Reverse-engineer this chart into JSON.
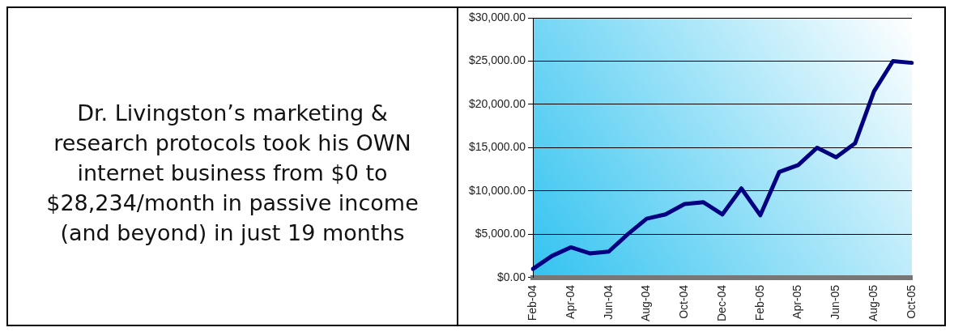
{
  "chart_data": [
    {
      "type": "other",
      "title": "Dr. Livingston’s marketing & research protocols took his OWN internet business from $0 to $28,234/month in passive income (and beyond) in just 19 months"
    },
    {
      "type": "line",
      "categories": [
        "Feb-04",
        null,
        "Apr-04",
        null,
        "Jun-04",
        null,
        "Aug-04",
        null,
        "Oct-04",
        null,
        "Dec-04",
        null,
        "Feb-05",
        null,
        "Apr-05",
        null,
        "Jun-05",
        null,
        "Aug-05",
        null,
        "Oct-05"
      ],
      "series": [
        {
          "color": "#000080",
          "values": [
            1000,
            2500,
            3500,
            2800,
            3000,
            5000,
            6800,
            7300,
            8500,
            8700,
            7300,
            10300,
            7200,
            12200,
            13000,
            15000,
            13900,
            15500,
            21500,
            25000,
            24800
          ]
        }
      ],
      "ylim": [
        0,
        30000
      ],
      "yticks": [
        {
          "value": 0,
          "label": "$0.00"
        },
        {
          "value": 5000,
          "label": "$5,000.00"
        },
        {
          "value": 10000,
          "label": "$10,000.00"
        },
        {
          "value": 15000,
          "label": "$15,000.00"
        },
        {
          "value": 20000,
          "label": "$20,000.00"
        },
        {
          "value": 25000,
          "label": "$25,000.00"
        },
        {
          "value": 30000,
          "label": "$30,000.00"
        }
      ],
      "grid": "y",
      "legend": false,
      "marker": "none",
      "line_style": "solid"
    }
  ]
}
